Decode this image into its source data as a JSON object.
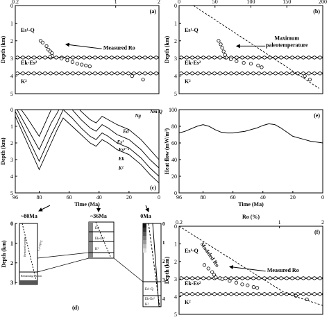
{
  "chart_data": [
    {
      "panel": "a",
      "type": "scatter",
      "title": "",
      "panel_label": "(a)",
      "xlabel": "Ro (%)",
      "ylabel": "Depth (km)",
      "xscale": "log",
      "xlim": [
        0.2,
        2
      ],
      "ylim": [
        0,
        5
      ],
      "xticks": [
        "0.2",
        "1",
        "2"
      ],
      "yticks": [
        "0",
        "1",
        "2",
        "3",
        "4",
        "5"
      ],
      "unconformity_depths": [
        2.9,
        3.8
      ],
      "formation_labels": [
        "Es¹-Q",
        "Ek-Es²",
        "K²"
      ],
      "annotation": "Measured Ro",
      "points": [
        {
          "x": 0.3,
          "y": 2.0
        },
        {
          "x": 0.31,
          "y": 2.1
        },
        {
          "x": 0.33,
          "y": 2.3
        },
        {
          "x": 0.34,
          "y": 2.5
        },
        {
          "x": 0.35,
          "y": 2.6
        },
        {
          "x": 0.36,
          "y": 2.7
        },
        {
          "x": 0.36,
          "y": 2.85
        },
        {
          "x": 0.35,
          "y": 2.9
        },
        {
          "x": 0.42,
          "y": 3.0
        },
        {
          "x": 0.46,
          "y": 3.1
        },
        {
          "x": 0.5,
          "y": 3.2
        },
        {
          "x": 0.54,
          "y": 3.3
        },
        {
          "x": 0.58,
          "y": 3.35
        },
        {
          "x": 0.62,
          "y": 3.4
        },
        {
          "x": 0.66,
          "y": 3.45
        },
        {
          "x": 1.3,
          "y": 4.0
        },
        {
          "x": 1.55,
          "y": 4.2
        }
      ]
    },
    {
      "panel": "b",
      "type": "scatter",
      "title": "",
      "panel_label": "(b)",
      "xlabel": "T (°C)",
      "ylabel": "Depth (km)",
      "xlim": [
        0,
        200
      ],
      "ylim": [
        0,
        5
      ],
      "xticks": [
        "0",
        "50",
        "100",
        "150",
        "200"
      ],
      "yticks": [
        "0",
        "1",
        "2",
        "3",
        "4",
        "5"
      ],
      "unconformity_depths": [
        2.9,
        3.8
      ],
      "formation_labels": [
        "Es¹-Q",
        "Ek-Es²",
        "K²"
      ],
      "annotation": "Maximum paleotemperature",
      "annotation_lines": [
        "Maximum",
        "paleotemperature"
      ],
      "trend": [
        {
          "x": 20,
          "y": 0
        },
        {
          "x": 195,
          "y": 4.7
        }
      ],
      "points": [
        {
          "x": 55,
          "y": 2.0
        },
        {
          "x": 58,
          "y": 2.2
        },
        {
          "x": 60,
          "y": 2.4
        },
        {
          "x": 62,
          "y": 2.6
        },
        {
          "x": 64,
          "y": 2.8
        },
        {
          "x": 66,
          "y": 2.95
        },
        {
          "x": 72,
          "y": 3.05
        },
        {
          "x": 80,
          "y": 3.15
        },
        {
          "x": 90,
          "y": 3.25
        },
        {
          "x": 100,
          "y": 3.3
        },
        {
          "x": 110,
          "y": 3.4
        },
        {
          "x": 115,
          "y": 3.5
        },
        {
          "x": 175,
          "y": 4.0
        },
        {
          "x": 182,
          "y": 4.2
        }
      ]
    },
    {
      "panel": "c",
      "type": "line",
      "title": "",
      "panel_label": "(c)",
      "xlabel": "Time (Ma)",
      "ylabel": "Depth (km)",
      "xlim": [
        96,
        0
      ],
      "ylim": [
        0,
        5
      ],
      "xticks": [
        "96",
        "80",
        "60",
        "40",
        "20",
        "0"
      ],
      "yticks": [
        "0",
        "1",
        "2",
        "3",
        "4",
        "5"
      ],
      "layer_labels": [
        "Nm-Q",
        "Ng",
        "Ed",
        "Es¹",
        "Es²⁻³",
        "Ek",
        "K²"
      ],
      "x": [
        96,
        88,
        80,
        76,
        72,
        68,
        64,
        58,
        52,
        46,
        42,
        38,
        34,
        28,
        20,
        12,
        6,
        0
      ],
      "series": [
        {
          "values": [
            -0.5,
            0.5,
            1.6,
            0.8,
            0.0,
            -0.6,
            -1.0,
            -0.5,
            0.1,
            0.6,
            0.8,
            0.4,
            0.6,
            0.9,
            1.2,
            1.8,
            2.4,
            3.0
          ]
        },
        {
          "values": [
            -0.2,
            1.1,
            2.4,
            1.6,
            0.8,
            0.2,
            -0.5,
            0.0,
            0.6,
            1.1,
            1.3,
            0.9,
            1.1,
            1.5,
            1.8,
            2.4,
            3.0,
            3.5
          ]
        },
        {
          "values": [
            0.1,
            1.6,
            3.1,
            2.3,
            1.5,
            0.8,
            0.0,
            0.5,
            1.1,
            1.6,
            1.8,
            1.4,
            1.6,
            2.0,
            2.3,
            2.9,
            3.5,
            4.0
          ]
        },
        {
          "values": [
            0.4,
            2.0,
            3.6,
            2.8,
            2.0,
            1.2,
            0.5,
            1.0,
            1.5,
            2.0,
            2.2,
            1.8,
            2.0,
            2.4,
            2.7,
            3.3,
            3.9,
            4.4
          ]
        }
      ]
    },
    {
      "panel": "e",
      "type": "line",
      "title": "",
      "panel_label": "(e)",
      "xlabel": "Time (Ma)",
      "ylabel": "Heat flow (mW/m²)",
      "xlim": [
        96,
        0
      ],
      "ylim": [
        0,
        100
      ],
      "xticks": [
        "96",
        "80",
        "60",
        "40",
        "20",
        "0"
      ],
      "yticks": [
        "0",
        "20",
        "40",
        "60",
        "80",
        "100"
      ],
      "x": [
        96,
        92,
        88,
        84,
        80,
        76,
        72,
        68,
        64,
        60,
        56,
        52,
        48,
        44,
        40,
        36,
        32,
        28,
        24,
        20,
        16,
        12,
        8,
        4,
        0
      ],
      "values": [
        72,
        74,
        77,
        80,
        82,
        80,
        76,
        73,
        72,
        72,
        73,
        74,
        76,
        78,
        81,
        83,
        82,
        78,
        73,
        68,
        66,
        64,
        62,
        61,
        60
      ]
    },
    {
      "panel": "d",
      "type": "other",
      "panel_label": "(d)",
      "ylabel": "Depth (km)",
      "yticks": [
        "0",
        "1",
        "2",
        "3"
      ],
      "column_ages": [
        "~80Ma",
        "~36Ma",
        "0Ma"
      ],
      "column_texts": [
        "Removed section",
        "Remaining section",
        "Es¹",
        "Ek-Es²",
        "K²",
        "Ek-Es²",
        "Es¹-Q",
        "K²",
        "T₀=10°C"
      ],
      "third_column_yticks": [
        "0",
        "1",
        "2",
        "3",
        "4"
      ]
    },
    {
      "panel": "f",
      "type": "scatter",
      "title": "",
      "panel_label": "(f)",
      "xlabel": "Ro (%)",
      "ylabel": "Depth (km)",
      "xscale": "log",
      "xlim": [
        0.2,
        2
      ],
      "ylim": [
        0,
        5
      ],
      "xticks": [
        "0.2",
        "1",
        "2"
      ],
      "yticks": [
        "0",
        "1",
        "2",
        "3",
        "4",
        "5"
      ],
      "unconformity_depths": [
        2.9,
        3.8
      ],
      "formation_labels": [
        "Es¹-Q",
        "Ek-Es²",
        "K²"
      ],
      "annotations": [
        "Modeled Ro",
        "Measured Ro"
      ],
      "model_line": [
        {
          "x": 0.2,
          "y": 0
        },
        {
          "x": 1.1,
          "y": 3.8
        },
        {
          "x": 2,
          "y": 4.5
        }
      ],
      "points": [
        {
          "x": 0.3,
          "y": 2.2
        },
        {
          "x": 0.32,
          "y": 2.4
        },
        {
          "x": 0.34,
          "y": 2.6
        },
        {
          "x": 0.35,
          "y": 2.75
        },
        {
          "x": 0.36,
          "y": 2.9
        },
        {
          "x": 0.4,
          "y": 3.0
        },
        {
          "x": 0.45,
          "y": 3.1
        },
        {
          "x": 0.5,
          "y": 3.2
        },
        {
          "x": 0.55,
          "y": 3.3
        },
        {
          "x": 0.6,
          "y": 3.35
        },
        {
          "x": 0.66,
          "y": 3.45
        },
        {
          "x": 0.7,
          "y": 3.5
        },
        {
          "x": 1.3,
          "y": 3.95
        },
        {
          "x": 1.55,
          "y": 4.15
        }
      ]
    }
  ]
}
